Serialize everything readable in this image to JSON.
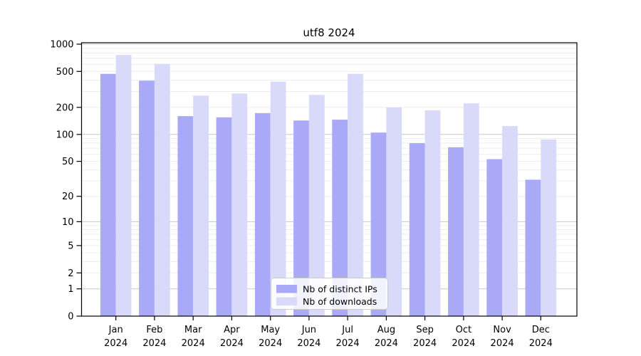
{
  "title": "utf8 2024",
  "colors": {
    "distinct_ips": "#a9a9f7",
    "downloads": "#d9d9fa",
    "grid_minor": "#ededed",
    "grid_major": "#c8c8c8",
    "axis": "#000000",
    "legend_border": "#cccccc"
  },
  "legend": {
    "items": [
      {
        "label": "Nb of distinct IPs",
        "color": "#a9a9f7"
      },
      {
        "label": "Nb of downloads",
        "color": "#d9d9fa"
      }
    ]
  },
  "chart_data": {
    "type": "bar",
    "title": "utf8 2024",
    "categories": [
      "Jan",
      "Feb",
      "Mar",
      "Apr",
      "May",
      "Jun",
      "Jul",
      "Aug",
      "Sep",
      "Oct",
      "Nov",
      "Dec"
    ],
    "year": "2024",
    "series": [
      {
        "name": "Nb of distinct IPs",
        "color": "#a9a9f7",
        "values": [
          470,
          395,
          160,
          155,
          173,
          143,
          146,
          105,
          80,
          72,
          53,
          31
        ]
      },
      {
        "name": "Nb of downloads",
        "color": "#d9d9fa",
        "values": [
          760,
          605,
          270,
          285,
          385,
          275,
          470,
          200,
          185,
          222,
          124,
          88
        ]
      }
    ],
    "xlabel": "",
    "ylabel": "",
    "yscale": "log10(value+1)",
    "yticks": [
      0,
      1,
      2,
      5,
      10,
      20,
      50,
      100,
      200,
      500,
      1000
    ],
    "ylim": [
      0,
      1040
    ],
    "grid": true,
    "legend_position": "lower center"
  }
}
